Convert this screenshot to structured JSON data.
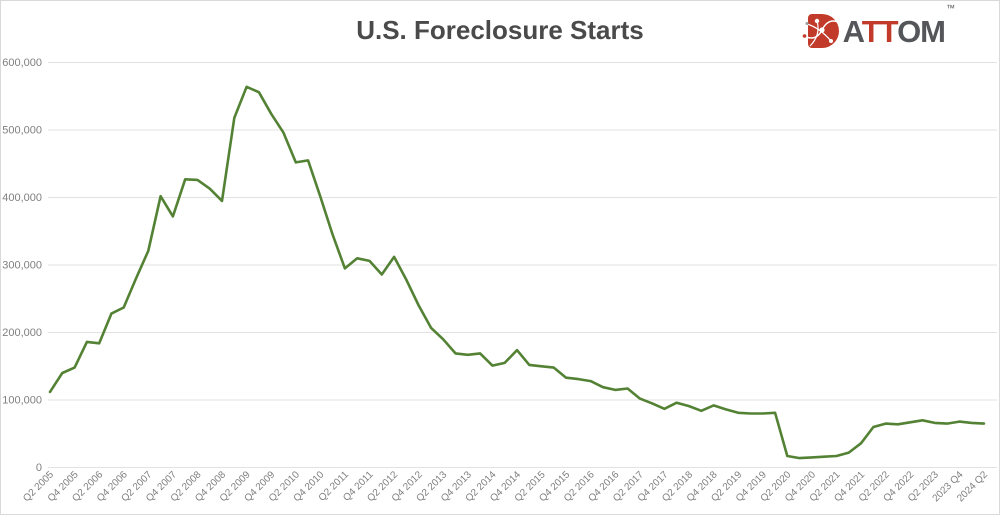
{
  "header": {
    "title": "U.S. Foreclosure Starts"
  },
  "logo": {
    "prefix": "A",
    "accent": "TT",
    "suffix": "OM",
    "tm": "™",
    "brand_red": "#c23b2a",
    "brand_gray": "#54565a",
    "icon": "attom-network-mark"
  },
  "chart_data": {
    "type": "line",
    "title": "U.S. Foreclosure Starts",
    "xlabel": "",
    "ylabel": "",
    "legend": "none",
    "grid": true,
    "ylim": [
      0,
      600000
    ],
    "y_ticks": [
      0,
      100000,
      200000,
      300000,
      400000,
      500000,
      600000
    ],
    "y_tick_labels": [
      "0",
      "100,000",
      "200,000",
      "300,000",
      "400,000",
      "500,000",
      "600,000"
    ],
    "line_color": "#548235",
    "points_per_tick": 2,
    "x_tick_labels": [
      "Q2 2005",
      "Q4 2005",
      "Q2 2006",
      "Q4 2006",
      "Q2 2007",
      "Q4 2007",
      "Q2 2008",
      "Q4 2008",
      "Q2 2009",
      "Q4 2009",
      "Q2 2010",
      "Q4 2010",
      "Q2 2011",
      "Q4 2011",
      "Q2 2012",
      "Q4 2012",
      "Q2 2013",
      "Q4 2013",
      "Q2 2014",
      "Q4 2014",
      "Q2 2015",
      "Q4 2015",
      "Q2 2016",
      "Q4 2016",
      "Q2 2017",
      "Q4 2017",
      "Q2 2018",
      "Q4 2018",
      "Q2 2019",
      "Q4 2019",
      "Q2 2020",
      "Q4 2020",
      "Q2 2021",
      "Q4 2021",
      "Q2 2022",
      "Q4 2022",
      "Q2 2023",
      "2023 Q4",
      "2024 Q2"
    ],
    "series": [
      {
        "name": "U.S. Foreclosure Starts (quarterly)",
        "first_quarter": "Q2 2005",
        "values": [
          112000,
          140000,
          148000,
          186000,
          184000,
          228000,
          237000,
          280000,
          321000,
          402000,
          372000,
          427000,
          426000,
          413000,
          395000,
          518000,
          564000,
          556000,
          524000,
          496000,
          452000,
          455000,
          401000,
          345000,
          295000,
          310000,
          306000,
          286000,
          312000,
          278000,
          240000,
          207000,
          190000,
          169000,
          167000,
          169000,
          151000,
          155000,
          174000,
          152000,
          150000,
          148000,
          133000,
          131000,
          128000,
          119000,
          115000,
          117000,
          102000,
          95000,
          87000,
          96000,
          91000,
          84000,
          92000,
          86000,
          81000,
          80000,
          80000,
          81000,
          17000,
          14000,
          15000,
          16000,
          17000,
          22000,
          36000,
          60000,
          65000,
          64000,
          67000,
          70000,
          66000,
          65000,
          68000,
          66000,
          65000
        ]
      }
    ]
  }
}
